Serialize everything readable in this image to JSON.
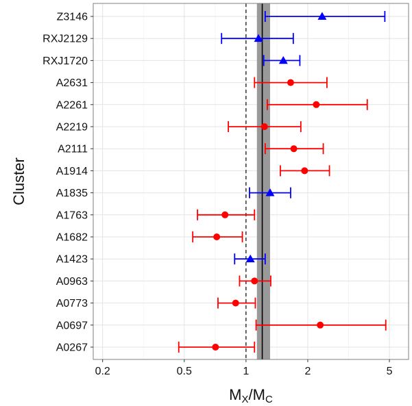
{
  "chart_data": {
    "type": "scatter",
    "xlabel": "M",
    "xlabel_sub1": "X",
    "xlabel_slash": "/M",
    "xlabel_sub2": "C",
    "ylabel": "Cluster",
    "x_scale": "log",
    "xlim": [
      0.18,
      6.2
    ],
    "x_ticks": [
      {
        "value": 0.2,
        "label": "0.2"
      },
      {
        "value": 0.5,
        "label": "0.5"
      },
      {
        "value": 1,
        "label": "1"
      },
      {
        "value": 2,
        "label": "2"
      },
      {
        "value": 5,
        "label": "5"
      }
    ],
    "reference_line": {
      "value": 1,
      "style": "dashed"
    },
    "mean_line": {
      "value": 1.2,
      "band": [
        1.13,
        1.31
      ]
    },
    "grid": true,
    "colors": {
      "red": "#ff0000",
      "blue": "#0000ff",
      "band": "#999999"
    },
    "points": [
      {
        "cluster": "Z3146",
        "x": 2.35,
        "lo": 1.24,
        "hi": 4.75,
        "color": "blue",
        "shape": "triangle"
      },
      {
        "cluster": "RXJ2129",
        "x": 1.15,
        "lo": 0.76,
        "hi": 1.7,
        "color": "blue",
        "shape": "triangle"
      },
      {
        "cluster": "RXJ1720",
        "x": 1.52,
        "lo": 1.22,
        "hi": 1.83,
        "color": "blue",
        "shape": "triangle"
      },
      {
        "cluster": "A2631",
        "x": 1.65,
        "lo": 1.1,
        "hi": 2.48,
        "color": "red",
        "shape": "circle"
      },
      {
        "cluster": "A2261",
        "x": 2.2,
        "lo": 1.27,
        "hi": 3.9,
        "color": "red",
        "shape": "circle"
      },
      {
        "cluster": "A2219",
        "x": 1.23,
        "lo": 0.82,
        "hi": 1.85,
        "color": "red",
        "shape": "circle"
      },
      {
        "cluster": "A2111",
        "x": 1.71,
        "lo": 1.24,
        "hi": 2.38,
        "color": "red",
        "shape": "circle"
      },
      {
        "cluster": "A1914",
        "x": 1.93,
        "lo": 1.47,
        "hi": 2.55,
        "color": "red",
        "shape": "circle"
      },
      {
        "cluster": "A1835",
        "x": 1.31,
        "lo": 1.04,
        "hi": 1.65,
        "color": "blue",
        "shape": "triangle"
      },
      {
        "cluster": "A1763",
        "x": 0.79,
        "lo": 0.58,
        "hi": 1.1,
        "color": "red",
        "shape": "circle"
      },
      {
        "cluster": "A1682",
        "x": 0.72,
        "lo": 0.55,
        "hi": 0.96,
        "color": "red",
        "shape": "circle"
      },
      {
        "cluster": "A1423",
        "x": 1.05,
        "lo": 0.88,
        "hi": 1.24,
        "color": "blue",
        "shape": "triangle"
      },
      {
        "cluster": "A0963",
        "x": 1.1,
        "lo": 0.93,
        "hi": 1.32,
        "color": "red",
        "shape": "circle"
      },
      {
        "cluster": "A0773",
        "x": 0.89,
        "lo": 0.73,
        "hi": 1.11,
        "color": "red",
        "shape": "circle"
      },
      {
        "cluster": "A0697",
        "x": 2.3,
        "lo": 1.12,
        "hi": 4.8,
        "color": "red",
        "shape": "circle"
      },
      {
        "cluster": "A0267",
        "x": 0.71,
        "lo": 0.47,
        "hi": 1.1,
        "color": "red",
        "shape": "circle"
      }
    ]
  }
}
